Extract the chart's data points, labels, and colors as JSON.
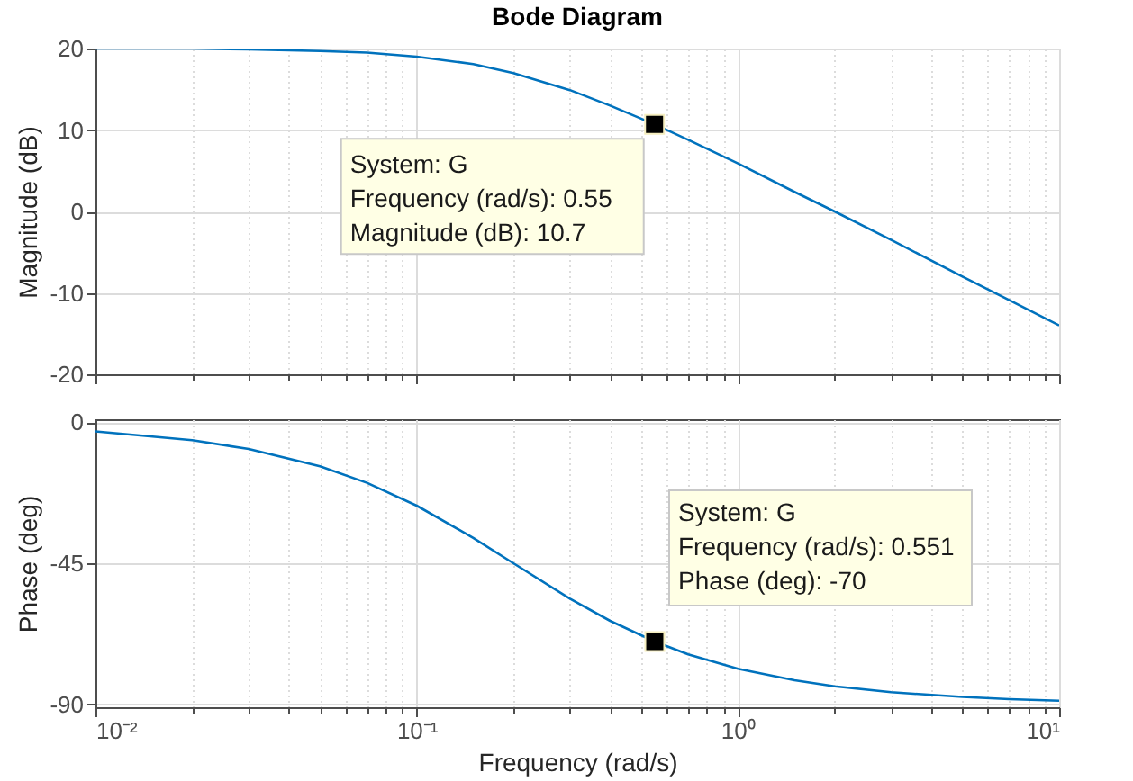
{
  "chart_data": [
    {
      "type": "line",
      "title": "Bode Diagram",
      "ylabel": "Magnitude (dB)",
      "x": [
        0.01,
        0.02,
        0.03,
        0.05,
        0.07,
        0.1,
        0.15,
        0.2,
        0.3,
        0.4,
        0.55,
        0.7,
        1,
        1.5,
        2,
        3,
        5,
        7,
        10
      ],
      "series": [
        {
          "color": "#0072bd",
          "values": [
            20.0,
            20.0,
            19.9,
            19.7,
            19.5,
            19.0,
            18.1,
            17.0,
            14.9,
            13.0,
            10.7,
            8.8,
            5.9,
            2.4,
            0.0,
            -3.5,
            -8.0,
            -10.9,
            -14.0
          ]
        }
      ],
      "xlim": [
        0.01,
        10
      ],
      "xticks": [
        0.01,
        {
          "value": 0.02,
          "label": null
        },
        {
          "value": 0.03,
          "label": null
        },
        {
          "value": 0.04,
          "label": null
        },
        {
          "value": 0.05,
          "label": null
        },
        {
          "value": 0.06,
          "label": null
        },
        {
          "value": 0.07,
          "label": null
        },
        {
          "value": 0.08,
          "label": null
        },
        {
          "value": 0.09,
          "label": null
        },
        0.1,
        {
          "value": 0.2,
          "label": null
        },
        {
          "value": 0.3,
          "label": null
        },
        {
          "value": 0.4,
          "label": null
        },
        {
          "value": 0.5,
          "label": null
        },
        {
          "value": 0.6,
          "label": null
        },
        {
          "value": 0.7,
          "label": null
        },
        {
          "value": 0.8,
          "label": null
        },
        {
          "value": 0.9,
          "label": null
        },
        1,
        {
          "value": 2,
          "label": null
        },
        {
          "value": 3,
          "label": null
        },
        {
          "value": 4,
          "label": null
        },
        {
          "value": 5,
          "label": null
        },
        {
          "value": 6,
          "label": null
        },
        {
          "value": 7,
          "label": null
        },
        {
          "value": 8,
          "label": null
        },
        {
          "value": 9,
          "label": null
        },
        10
      ],
      "ylim": [
        -20,
        20
      ],
      "yticks": [
        -20,
        -10,
        0,
        10,
        20
      ],
      "log": "x",
      "grid": true,
      "tick_labels": "y",
      "marker": "none",
      "annotations": [
        {
          "text": "System: G\nFrequency (rad/s): 0.55\nMagnitude (dB): 10.7",
          "x": 0.55,
          "y": 10.7
        }
      ]
    },
    {
      "type": "line",
      "xlabel": "Frequency  (rad/s)",
      "ylabel": "Phase (deg)",
      "x": [
        0.01,
        0.02,
        0.03,
        0.05,
        0.07,
        0.1,
        0.15,
        0.2,
        0.3,
        0.4,
        0.551,
        0.7,
        1,
        1.5,
        2,
        3,
        5,
        7,
        10
      ],
      "series": [
        {
          "color": "#0072bd",
          "values": [
            -2.9,
            -5.7,
            -8.5,
            -14.0,
            -19.3,
            -26.6,
            -36.9,
            -45.0,
            -56.3,
            -63.4,
            -70.0,
            -74.1,
            -78.7,
            -82.4,
            -84.3,
            -86.2,
            -87.7,
            -88.4,
            -88.9
          ]
        }
      ],
      "xlim": [
        0.01,
        10
      ],
      "xticks": [
        {
          "value": 0.01,
          "label": "10⁻²"
        },
        {
          "value": 0.02,
          "label": null
        },
        {
          "value": 0.03,
          "label": null
        },
        {
          "value": 0.04,
          "label": null
        },
        {
          "value": 0.05,
          "label": null
        },
        {
          "value": 0.06,
          "label": null
        },
        {
          "value": 0.07,
          "label": null
        },
        {
          "value": 0.08,
          "label": null
        },
        {
          "value": 0.09,
          "label": null
        },
        {
          "value": 0.1,
          "label": "10⁻¹"
        },
        {
          "value": 0.2,
          "label": null
        },
        {
          "value": 0.3,
          "label": null
        },
        {
          "value": 0.4,
          "label": null
        },
        {
          "value": 0.5,
          "label": null
        },
        {
          "value": 0.6,
          "label": null
        },
        {
          "value": 0.7,
          "label": null
        },
        {
          "value": 0.8,
          "label": null
        },
        {
          "value": 0.9,
          "label": null
        },
        {
          "value": 1,
          "label": "10⁰"
        },
        {
          "value": 2,
          "label": null
        },
        {
          "value": 3,
          "label": null
        },
        {
          "value": 4,
          "label": null
        },
        {
          "value": 5,
          "label": null
        },
        {
          "value": 6,
          "label": null
        },
        {
          "value": 7,
          "label": null
        },
        {
          "value": 8,
          "label": null
        },
        {
          "value": 9,
          "label": null
        },
        {
          "value": 10,
          "label": "10¹"
        }
      ],
      "ylim": [
        -91,
        1
      ],
      "yticks": [
        -90,
        -45,
        0
      ],
      "log": "x",
      "grid": true,
      "marker": "none",
      "annotations": [
        {
          "text": "System: G\nFrequency (rad/s): 0.551\nPhase (deg): -70",
          "x": 0.551,
          "y": -70
        }
      ]
    }
  ]
}
